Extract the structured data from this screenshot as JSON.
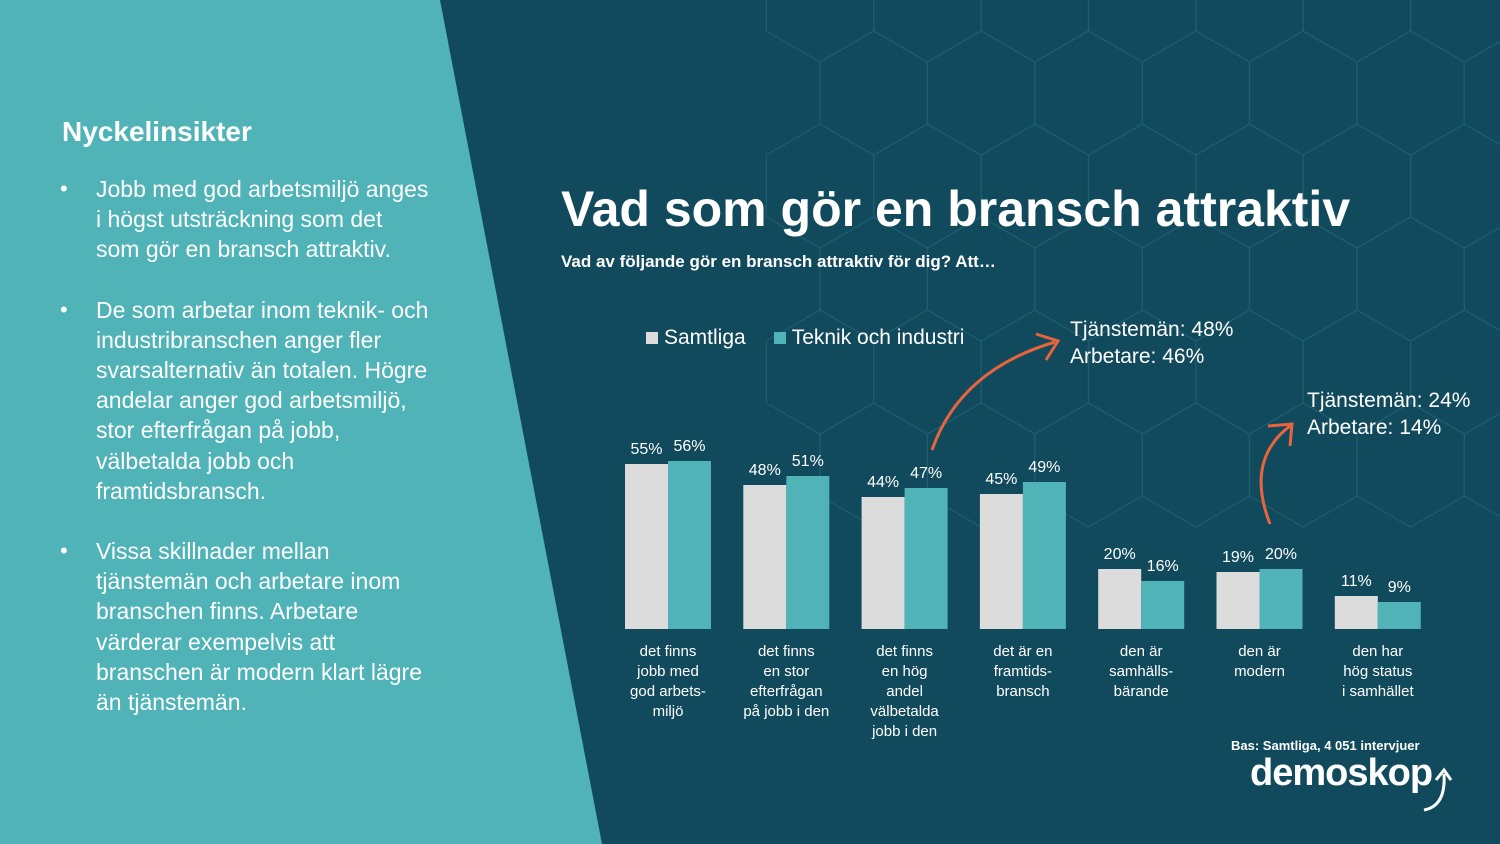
{
  "insights": {
    "title": "Nyckelinsikter",
    "bullets": [
      "Jobb med god arbetsmiljö anges i högst utsträckning som det som gör en bransch attraktiv.",
      "De som arbetar inom teknik- och industribranschen anger fler svarsalternativ än totalen. Högre andelar anger god arbetsmiljö, stor efterfrågan på jobb, välbetalda jobb och framtidsbransch.",
      "Vissa skillnader mellan tjänstemän och arbetare inom branschen finns. Arbetare värderar exempelvis att branschen är modern klart lägre än tjänstemän."
    ]
  },
  "callouts": [
    {
      "line1": "Tjänstemän: 48%",
      "line2": "Arbetare: 46%"
    },
    {
      "line1": "Tjänstemän: 24%",
      "line2": "Arbetare: 14%"
    }
  ],
  "colors": {
    "background": "#114a5c",
    "panel": "#4fb3b8",
    "series1": "#dcdcdc",
    "series2": "#4fb3b8",
    "arrow": "#e8643c"
  },
  "chart_data": {
    "type": "bar",
    "title": "Vad som gör en bransch attraktiv",
    "subtitle": "Vad av följande gör en bransch attraktiv för dig? Att…",
    "categories": [
      [
        "det finns",
        "jobb med",
        "god arbets-",
        "miljö"
      ],
      [
        "det finns",
        "en stor",
        "efterfrågan",
        "på jobb i den"
      ],
      [
        "det finns",
        "en hög",
        "andel",
        "välbetalda",
        "jobb i den"
      ],
      [
        "det är en",
        "framtids-",
        "bransch"
      ],
      [
        "den är",
        "samhälls-",
        "bärande"
      ],
      [
        "den är",
        "modern"
      ],
      [
        "den har",
        "hög status",
        "i samhället"
      ]
    ],
    "series": [
      {
        "name": "Samtliga",
        "values": [
          55,
          48,
          44,
          45,
          20,
          19,
          11
        ]
      },
      {
        "name": "Teknik och industri",
        "values": [
          56,
          51,
          47,
          49,
          16,
          20,
          9
        ]
      }
    ],
    "value_suffix": "%",
    "ylim": [
      0,
      60
    ],
    "grid": false,
    "legend": "top-left"
  },
  "footer": {
    "base_note": "Bas: Samtliga, 4 051 intervjuer",
    "logo_text": "demoskop"
  }
}
